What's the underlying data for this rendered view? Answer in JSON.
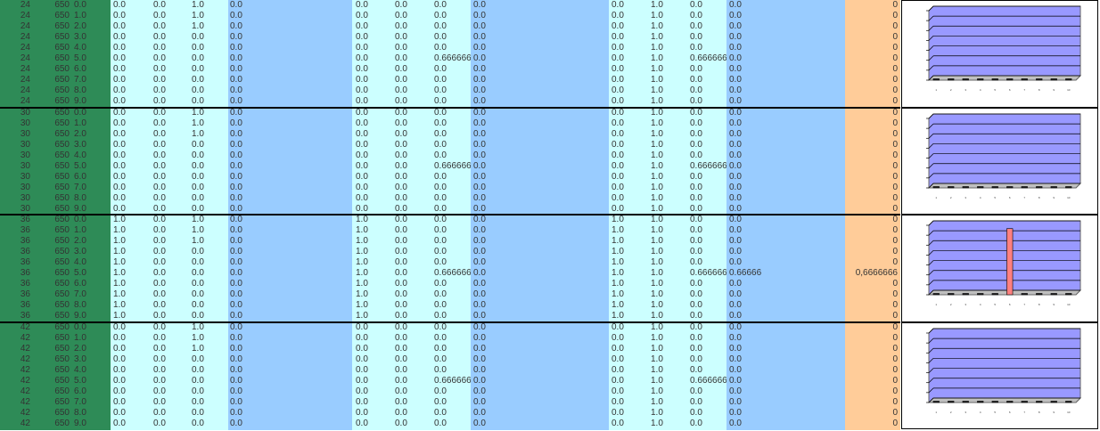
{
  "colors": {
    "green": "#2e8b57",
    "cyan": "#ccffff",
    "blue": "#99ccff",
    "orange": "#ffcc99",
    "plot": "#9999ff",
    "bar": "#ff8080"
  },
  "groups": [
    {
      "rows": [
        [
          "24",
          "650",
          "0.0",
          "0.0",
          "0.0",
          "1.0",
          "0.0",
          "0.0",
          "0.0",
          "0.0",
          "0.0",
          "0.0",
          "1.0",
          "0.0",
          "0.0",
          "0"
        ],
        [
          "24",
          "650",
          "1.0",
          "0.0",
          "0.0",
          "1.0",
          "0.0",
          "0.0",
          "0.0",
          "0.0",
          "0.0",
          "0.0",
          "1.0",
          "0.0",
          "0.0",
          "0"
        ],
        [
          "24",
          "650",
          "2.0",
          "0.0",
          "0.0",
          "1.0",
          "0.0",
          "0.0",
          "0.0",
          "0.0",
          "0.0",
          "0.0",
          "1.0",
          "0.0",
          "0.0",
          "0"
        ],
        [
          "24",
          "650",
          "3.0",
          "0.0",
          "0.0",
          "0.0",
          "0.0",
          "0.0",
          "0.0",
          "0.0",
          "0.0",
          "0.0",
          "1.0",
          "0.0",
          "0.0",
          "0"
        ],
        [
          "24",
          "650",
          "4.0",
          "0.0",
          "0.0",
          "0.0",
          "0.0",
          "0.0",
          "0.0",
          "0.0",
          "0.0",
          "0.0",
          "1.0",
          "0.0",
          "0.0",
          "0"
        ],
        [
          "24",
          "650",
          "5.0",
          "0.0",
          "0.0",
          "0.0",
          "0.0",
          "0.0",
          "0.0",
          "0.6666666",
          "0.0",
          "0.0",
          "1.0",
          "0.6666666",
          "0.0",
          "0"
        ],
        [
          "24",
          "650",
          "6.0",
          "0.0",
          "0.0",
          "0.0",
          "0.0",
          "0.0",
          "0.0",
          "0.0",
          "0.0",
          "0.0",
          "1.0",
          "0.0",
          "0.0",
          "0"
        ],
        [
          "24",
          "650",
          "7.0",
          "0.0",
          "0.0",
          "0.0",
          "0.0",
          "0.0",
          "0.0",
          "0.0",
          "0.0",
          "0.0",
          "1.0",
          "0.0",
          "0.0",
          "0"
        ],
        [
          "24",
          "650",
          "8.0",
          "0.0",
          "0.0",
          "0.0",
          "0.0",
          "0.0",
          "0.0",
          "0.0",
          "0.0",
          "0.0",
          "1.0",
          "0.0",
          "0.0",
          "0"
        ],
        [
          "24",
          "650",
          "9.0",
          "0.0",
          "0.0",
          "0.0",
          "0.0",
          "0.0",
          "0.0",
          "0.0",
          "0.0",
          "0.0",
          "1.0",
          "0.0",
          "0.0",
          "0"
        ]
      ]
    },
    {
      "rows": [
        [
          "30",
          "650",
          "0.0",
          "0.0",
          "0.0",
          "1.0",
          "0.0",
          "0.0",
          "0.0",
          "0.0",
          "0.0",
          "0.0",
          "1.0",
          "0.0",
          "0.0",
          "0"
        ],
        [
          "30",
          "650",
          "1.0",
          "0.0",
          "0.0",
          "1.0",
          "0.0",
          "0.0",
          "0.0",
          "0.0",
          "0.0",
          "0.0",
          "1.0",
          "0.0",
          "0.0",
          "0"
        ],
        [
          "30",
          "650",
          "2.0",
          "0.0",
          "0.0",
          "1.0",
          "0.0",
          "0.0",
          "0.0",
          "0.0",
          "0.0",
          "0.0",
          "1.0",
          "0.0",
          "0.0",
          "0"
        ],
        [
          "30",
          "650",
          "3.0",
          "0.0",
          "0.0",
          "0.0",
          "0.0",
          "0.0",
          "0.0",
          "0.0",
          "0.0",
          "0.0",
          "1.0",
          "0.0",
          "0.0",
          "0"
        ],
        [
          "30",
          "650",
          "4.0",
          "0.0",
          "0.0",
          "0.0",
          "0.0",
          "0.0",
          "0.0",
          "0.0",
          "0.0",
          "0.0",
          "1.0",
          "0.0",
          "0.0",
          "0"
        ],
        [
          "30",
          "650",
          "5.0",
          "0.0",
          "0.0",
          "0.0",
          "0.0",
          "0.0",
          "0.0",
          "0.6666666",
          "0.0",
          "0.0",
          "1.0",
          "0.6666666",
          "0.0",
          "0"
        ],
        [
          "30",
          "650",
          "6.0",
          "0.0",
          "0.0",
          "0.0",
          "0.0",
          "0.0",
          "0.0",
          "0.0",
          "0.0",
          "0.0",
          "1.0",
          "0.0",
          "0.0",
          "0"
        ],
        [
          "30",
          "650",
          "7.0",
          "0.0",
          "0.0",
          "0.0",
          "0.0",
          "0.0",
          "0.0",
          "0.0",
          "0.0",
          "0.0",
          "1.0",
          "0.0",
          "0.0",
          "0"
        ],
        [
          "30",
          "650",
          "8.0",
          "0.0",
          "0.0",
          "0.0",
          "0.0",
          "0.0",
          "0.0",
          "0.0",
          "0.0",
          "0.0",
          "1.0",
          "0.0",
          "0.0",
          "0"
        ],
        [
          "30",
          "650",
          "9.0",
          "0.0",
          "0.0",
          "0.0",
          "0.0",
          "0.0",
          "0.0",
          "0.0",
          "0.0",
          "0.0",
          "1.0",
          "0.0",
          "0.0",
          "0"
        ]
      ]
    },
    {
      "rows": [
        [
          "36",
          "650",
          "0.0",
          "1.0",
          "0.0",
          "1.0",
          "0.0",
          "1.0",
          "0.0",
          "0.0",
          "0.0",
          "1.0",
          "1.0",
          "0.0",
          "0.0",
          "0"
        ],
        [
          "36",
          "650",
          "1.0",
          "1.0",
          "0.0",
          "1.0",
          "0.0",
          "1.0",
          "0.0",
          "0.0",
          "0.0",
          "1.0",
          "1.0",
          "0.0",
          "0.0",
          "0"
        ],
        [
          "36",
          "650",
          "2.0",
          "1.0",
          "0.0",
          "1.0",
          "0.0",
          "1.0",
          "0.0",
          "0.0",
          "0.0",
          "1.0",
          "1.0",
          "0.0",
          "0.0",
          "0"
        ],
        [
          "36",
          "650",
          "3.0",
          "1.0",
          "0.0",
          "0.0",
          "0.0",
          "1.0",
          "0.0",
          "0.0",
          "0.0",
          "1.0",
          "1.0",
          "0.0",
          "0.0",
          "0"
        ],
        [
          "36",
          "650",
          "4.0",
          "1.0",
          "0.0",
          "0.0",
          "0.0",
          "1.0",
          "0.0",
          "0.0",
          "0.0",
          "1.0",
          "1.0",
          "0.0",
          "0.0",
          "0"
        ],
        [
          "36",
          "650",
          "5.0",
          "1.0",
          "0.0",
          "0.0",
          "0.0",
          "1.0",
          "0.0",
          "0.6666666",
          "0.0",
          "1.0",
          "1.0",
          "0.666666",
          "0.66666",
          "0,6666666"
        ],
        [
          "36",
          "650",
          "6.0",
          "1.0",
          "0.0",
          "0.0",
          "0.0",
          "1.0",
          "0.0",
          "0.0",
          "0.0",
          "1.0",
          "1.0",
          "0.0",
          "0.0",
          "0"
        ],
        [
          "36",
          "650",
          "7.0",
          "1.0",
          "0.0",
          "0.0",
          "0.0",
          "1.0",
          "0.0",
          "0.0",
          "0.0",
          "1.0",
          "1.0",
          "0.0",
          "0.0",
          "0"
        ],
        [
          "36",
          "650",
          "8.0",
          "1.0",
          "0.0",
          "0.0",
          "0.0",
          "1.0",
          "0.0",
          "0.0",
          "0.0",
          "1.0",
          "1.0",
          "0.0",
          "0.0",
          "0"
        ],
        [
          "36",
          "650",
          "9.0",
          "1.0",
          "0.0",
          "0.0",
          "0.0",
          "1.0",
          "0.0",
          "0.0",
          "0.0",
          "1.0",
          "1.0",
          "0.0",
          "0.0",
          "0"
        ]
      ]
    },
    {
      "rows": [
        [
          "42",
          "650",
          "0.0",
          "0.0",
          "0.0",
          "1.0",
          "0.0",
          "0.0",
          "0.0",
          "0.0",
          "0.0",
          "0.0",
          "1.0",
          "0.0",
          "0.0",
          "0"
        ],
        [
          "42",
          "650",
          "1.0",
          "0.0",
          "0.0",
          "1.0",
          "0.0",
          "0.0",
          "0.0",
          "0.0",
          "0.0",
          "0.0",
          "1.0",
          "0.0",
          "0.0",
          "0"
        ],
        [
          "42",
          "650",
          "2.0",
          "0.0",
          "0.0",
          "1.0",
          "0.0",
          "0.0",
          "0.0",
          "0.0",
          "0.0",
          "0.0",
          "1.0",
          "0.0",
          "0.0",
          "0"
        ],
        [
          "42",
          "650",
          "3.0",
          "0.0",
          "0.0",
          "0.0",
          "0.0",
          "0.0",
          "0.0",
          "0.0",
          "0.0",
          "0.0",
          "1.0",
          "0.0",
          "0.0",
          "0"
        ],
        [
          "42",
          "650",
          "4.0",
          "0.0",
          "0.0",
          "0.0",
          "0.0",
          "0.0",
          "0.0",
          "0.0",
          "0.0",
          "0.0",
          "1.0",
          "0.0",
          "0.0",
          "0"
        ],
        [
          "42",
          "650",
          "5.0",
          "0.0",
          "0.0",
          "0.0",
          "0.0",
          "0.0",
          "0.0",
          "0.6666666",
          "0.0",
          "0.0",
          "1.0",
          "0.6666666",
          "0.0",
          "0"
        ],
        [
          "42",
          "650",
          "6.0",
          "0.0",
          "0.0",
          "0.0",
          "0.0",
          "0.0",
          "0.0",
          "0.0",
          "0.0",
          "0.0",
          "1.0",
          "0.0",
          "0.0",
          "0"
        ],
        [
          "42",
          "650",
          "7.0",
          "0.0",
          "0.0",
          "0.0",
          "0.0",
          "0.0",
          "0.0",
          "0.0",
          "0.0",
          "0.0",
          "1.0",
          "0.0",
          "0.0",
          "0"
        ],
        [
          "42",
          "650",
          "8.0",
          "0.0",
          "0.0",
          "0.0",
          "0.0",
          "0.0",
          "0.0",
          "0.0",
          "0.0",
          "0.0",
          "1.0",
          "0.0",
          "0.0",
          "0"
        ],
        [
          "42",
          "650",
          "9.0",
          "0.0",
          "0.0",
          "0.0",
          "0.0",
          "0.0",
          "0.0",
          "0.0",
          "0.0",
          "0.0",
          "1.0",
          "0.0",
          "0.0",
          "0"
        ]
      ]
    }
  ],
  "chart_data": [
    {
      "type": "bar",
      "categories": [
        "1",
        "2",
        "3",
        "4",
        "5",
        "6",
        "7",
        "8",
        "9",
        "10"
      ],
      "values": [
        0,
        0,
        0,
        0,
        0,
        0,
        0,
        0,
        0,
        0
      ],
      "ylim": [
        0,
        0.7
      ]
    },
    {
      "type": "bar",
      "categories": [
        "1",
        "2",
        "3",
        "4",
        "5",
        "6",
        "7",
        "8",
        "9",
        "10"
      ],
      "values": [
        0,
        0,
        0,
        0,
        0,
        0,
        0,
        0,
        0,
        0
      ],
      "ylim": [
        0,
        0.7
      ]
    },
    {
      "type": "bar",
      "categories": [
        "1",
        "2",
        "3",
        "4",
        "5",
        "6",
        "7",
        "8",
        "9",
        "10"
      ],
      "values": [
        0,
        0,
        0,
        0,
        0,
        0.6666666,
        0,
        0,
        0,
        0
      ],
      "ylim": [
        0,
        0.7
      ]
    },
    {
      "type": "bar",
      "categories": [
        "1",
        "2",
        "3",
        "4",
        "5",
        "6",
        "7",
        "8",
        "9",
        "10"
      ],
      "values": [
        0,
        0,
        0,
        0,
        0,
        0,
        0,
        0,
        0,
        0
      ],
      "ylim": [
        0,
        0.7
      ]
    }
  ]
}
